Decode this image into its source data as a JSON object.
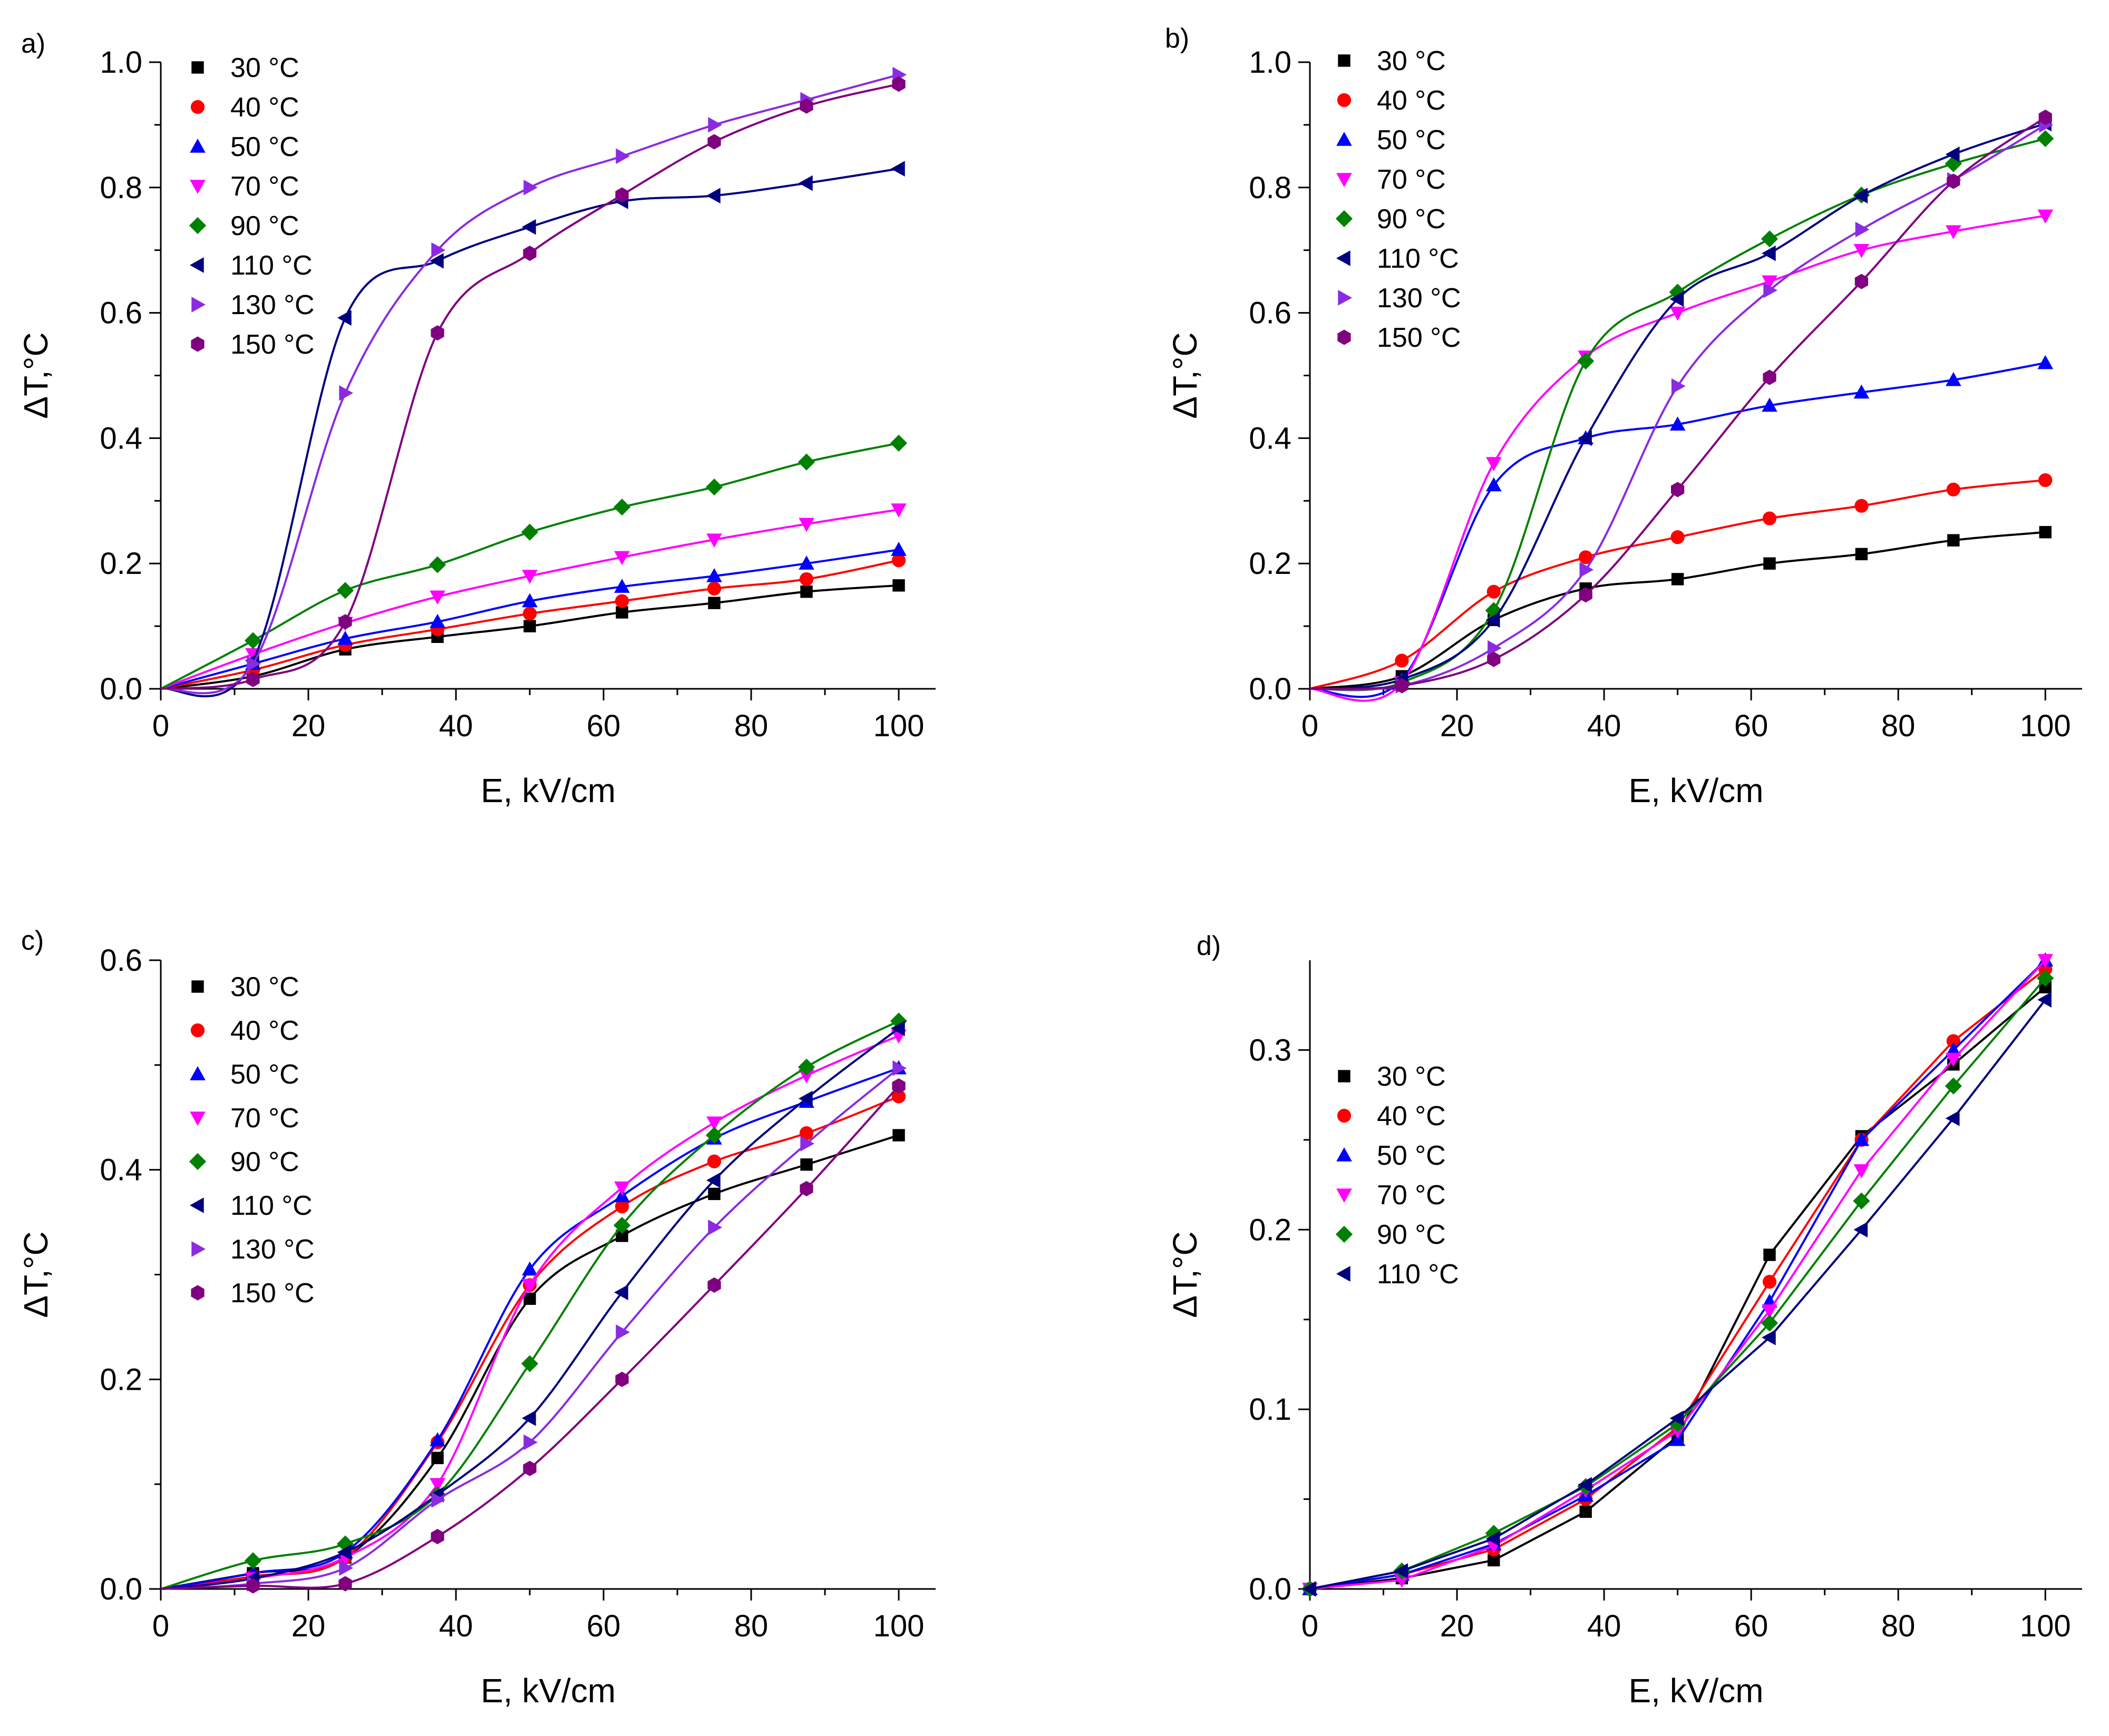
{
  "chart_data": [
    {
      "type": "line",
      "panel_label": "a)",
      "xlabel": "E, kV/cm",
      "ylabel": "ΔT,°C",
      "xlim": [
        0,
        105
      ],
      "ylim": [
        0,
        1.0
      ],
      "xticks": [
        0,
        20,
        40,
        60,
        80,
        100
      ],
      "xtick_labels": [
        "0",
        "20",
        "40",
        "60",
        "80",
        "100"
      ],
      "yticks": [
        0,
        0.2,
        0.4,
        0.6,
        0.8,
        1.0
      ],
      "ytick_labels": [
        "0.0",
        "0.2",
        "0.4",
        "0.6",
        "0.8",
        "1.0"
      ],
      "legend_position": "top-left",
      "x": [
        12.5,
        25,
        37.5,
        50,
        62.5,
        75,
        87.5,
        100
      ],
      "series": [
        {
          "name": "30 °C",
          "marker": "square",
          "color": "#000000",
          "values": [
            0.02,
            0.063,
            0.083,
            0.1,
            0.122,
            0.137,
            0.155,
            0.165
          ]
        },
        {
          "name": "40 °C",
          "marker": "circle",
          "color": "#ff0000",
          "values": [
            0.03,
            0.07,
            0.095,
            0.12,
            0.14,
            0.16,
            0.175,
            0.205
          ]
        },
        {
          "name": "50 °C",
          "marker": "triangle-up",
          "color": "#0000ff",
          "values": [
            0.04,
            0.08,
            0.107,
            0.14,
            0.163,
            0.18,
            0.2,
            0.222
          ]
        },
        {
          "name": "70 °C",
          "marker": "triangle-down",
          "color": "#ff00ff",
          "values": [
            0.055,
            0.105,
            0.147,
            0.18,
            0.21,
            0.238,
            0.263,
            0.286
          ]
        },
        {
          "name": "90 °C",
          "marker": "diamond",
          "color": "#008000",
          "values": [
            0.077,
            0.157,
            0.198,
            0.25,
            0.29,
            0.322,
            0.362,
            0.392
          ]
        },
        {
          "name": "110 °C",
          "marker": "triangle-left",
          "color": "#000080",
          "values": [
            0.045,
            0.592,
            0.683,
            0.737,
            0.778,
            0.787,
            0.807,
            0.83
          ]
        },
        {
          "name": "130 °C",
          "marker": "triangle-right",
          "color": "#8a2be2",
          "values": [
            0.04,
            0.472,
            0.7,
            0.8,
            0.85,
            0.9,
            0.94,
            0.98
          ]
        },
        {
          "name": "150 °C",
          "marker": "hexagon",
          "color": "#800080",
          "values": [
            0.015,
            0.107,
            0.568,
            0.695,
            0.788,
            0.873,
            0.93,
            0.965
          ]
        }
      ]
    },
    {
      "type": "line",
      "panel_label": "b)",
      "xlabel": "E, kV/cm",
      "ylabel": "ΔT,°C",
      "xlim": [
        0,
        105
      ],
      "ylim": [
        0,
        1.0
      ],
      "xticks": [
        0,
        20,
        40,
        60,
        80,
        100
      ],
      "xtick_labels": [
        "0",
        "20",
        "40",
        "60",
        "80",
        "100"
      ],
      "yticks": [
        0,
        0.2,
        0.4,
        0.6,
        0.8,
        1.0
      ],
      "ytick_labels": [
        "0.0",
        "0.2",
        "0.4",
        "0.6",
        "0.8",
        "1.0"
      ],
      "legend_position": "top-left",
      "x": [
        12.5,
        25,
        37.5,
        50,
        62.5,
        75,
        87.5,
        100
      ],
      "series": [
        {
          "name": "30 °C",
          "marker": "square",
          "color": "#000000",
          "values": [
            0.02,
            0.11,
            0.16,
            0.175,
            0.2,
            0.215,
            0.237,
            0.25
          ]
        },
        {
          "name": "40 °C",
          "marker": "circle",
          "color": "#ff0000",
          "values": [
            0.045,
            0.155,
            0.21,
            0.242,
            0.272,
            0.292,
            0.318,
            0.333
          ]
        },
        {
          "name": "50 °C",
          "marker": "triangle-up",
          "color": "#0000ff",
          "values": [
            0.015,
            0.325,
            0.4,
            0.422,
            0.452,
            0.473,
            0.493,
            0.52
          ]
        },
        {
          "name": "70 °C",
          "marker": "triangle-down",
          "color": "#ff00ff",
          "values": [
            0.01,
            0.36,
            0.53,
            0.6,
            0.65,
            0.7,
            0.73,
            0.755
          ]
        },
        {
          "name": "90 °C",
          "marker": "diamond",
          "color": "#008000",
          "values": [
            0.01,
            0.125,
            0.523,
            0.633,
            0.718,
            0.788,
            0.838,
            0.878
          ]
        },
        {
          "name": "110 °C",
          "marker": "triangle-left",
          "color": "#000080",
          "values": [
            0.015,
            0.11,
            0.4,
            0.622,
            0.695,
            0.787,
            0.853,
            0.902
          ]
        },
        {
          "name": "130 °C",
          "marker": "triangle-right",
          "color": "#8a2be2",
          "values": [
            0.005,
            0.065,
            0.19,
            0.483,
            0.636,
            0.733,
            0.812,
            0.9
          ]
        },
        {
          "name": "150 °C",
          "marker": "hexagon",
          "color": "#800080",
          "values": [
            0.005,
            0.047,
            0.15,
            0.318,
            0.497,
            0.65,
            0.81,
            0.912
          ]
        }
      ]
    },
    {
      "type": "line",
      "panel_label": "c)",
      "xlabel": "E, kV/cm",
      "ylabel": "ΔT,°C",
      "xlim": [
        0,
        105
      ],
      "ylim": [
        0,
        0.6
      ],
      "xticks": [
        0,
        20,
        40,
        60,
        80,
        100
      ],
      "xtick_labels": [
        "0",
        "20",
        "40",
        "60",
        "80",
        "100"
      ],
      "yticks": [
        0,
        0.2,
        0.4,
        0.6
      ],
      "ytick_labels": [
        "0.0",
        "0.2",
        "0.4",
        "0.6"
      ],
      "legend_position": "top-left",
      "x": [
        12.5,
        25,
        37.5,
        50,
        62.5,
        75,
        87.5,
        100
      ],
      "series": [
        {
          "name": "30 °C",
          "marker": "square",
          "color": "#000000",
          "values": [
            0.015,
            0.03,
            0.125,
            0.277,
            0.337,
            0.377,
            0.405,
            0.433
          ]
        },
        {
          "name": "40 °C",
          "marker": "circle",
          "color": "#ff0000",
          "values": [
            0.012,
            0.03,
            0.14,
            0.29,
            0.365,
            0.408,
            0.435,
            0.47
          ]
        },
        {
          "name": "50 °C",
          "marker": "triangle-up",
          "color": "#0000ff",
          "values": [
            0.015,
            0.035,
            0.142,
            0.305,
            0.375,
            0.43,
            0.465,
            0.497
          ]
        },
        {
          "name": "70 °C",
          "marker": "triangle-down",
          "color": "#ff00ff",
          "values": [
            0.01,
            0.03,
            0.1,
            0.29,
            0.383,
            0.445,
            0.49,
            0.528
          ]
        },
        {
          "name": "90 °C",
          "marker": "diamond",
          "color": "#008000",
          "values": [
            0.027,
            0.043,
            0.09,
            0.215,
            0.347,
            0.433,
            0.498,
            0.542
          ]
        },
        {
          "name": "110 °C",
          "marker": "triangle-left",
          "color": "#000080",
          "values": [
            0.01,
            0.035,
            0.09,
            0.163,
            0.283,
            0.39,
            0.468,
            0.535
          ]
        },
        {
          "name": "130 °C",
          "marker": "triangle-right",
          "color": "#8a2be2",
          "values": [
            0.005,
            0.02,
            0.085,
            0.14,
            0.245,
            0.345,
            0.425,
            0.497
          ]
        },
        {
          "name": "150 °C",
          "marker": "hexagon",
          "color": "#800080",
          "values": [
            0.003,
            0.005,
            0.05,
            0.115,
            0.2,
            0.29,
            0.382,
            0.48
          ]
        }
      ]
    },
    {
      "type": "line",
      "panel_label": "d)",
      "xlabel": "E, kV/cm",
      "ylabel": "ΔT,°C",
      "xlim": [
        0,
        105
      ],
      "ylim": [
        0,
        0.35
      ],
      "xticks": [
        0,
        20,
        40,
        60,
        80,
        100
      ],
      "xtick_labels": [
        "0",
        "20",
        "40",
        "60",
        "80",
        "100"
      ],
      "yticks": [
        0,
        0.1,
        0.2,
        0.3
      ],
      "ytick_labels": [
        "0.0",
        "0.1",
        "0.2",
        "0.3"
      ],
      "legend_position": "middle-left",
      "x": [
        0,
        12.5,
        25,
        37.5,
        50,
        62.5,
        75,
        87.5,
        100
      ],
      "series": [
        {
          "name": "30 °C",
          "marker": "square",
          "color": "#000000",
          "values": [
            0,
            0.006,
            0.016,
            0.043,
            0.085,
            0.186,
            0.252,
            0.292,
            0.335
          ]
        },
        {
          "name": "40 °C",
          "marker": "circle",
          "color": "#ff0000",
          "values": [
            0,
            0.008,
            0.022,
            0.05,
            0.09,
            0.171,
            0.25,
            0.305,
            0.345
          ]
        },
        {
          "name": "50 °C",
          "marker": "triangle-up",
          "color": "#0000ff",
          "values": [
            0,
            0.008,
            0.025,
            0.052,
            0.083,
            0.16,
            0.25,
            0.3,
            0.35
          ]
        },
        {
          "name": "70 °C",
          "marker": "triangle-down",
          "color": "#ff00ff",
          "values": [
            0,
            0.005,
            0.024,
            0.055,
            0.088,
            0.155,
            0.233,
            0.295,
            0.35
          ]
        },
        {
          "name": "90 °C",
          "marker": "diamond",
          "color": "#008000",
          "values": [
            0,
            0.01,
            0.031,
            0.057,
            0.092,
            0.148,
            0.216,
            0.28,
            0.34
          ]
        },
        {
          "name": "110 °C",
          "marker": "triangle-left",
          "color": "#000080",
          "values": [
            0,
            0.01,
            0.028,
            0.058,
            0.095,
            0.14,
            0.2,
            0.262,
            0.328
          ]
        }
      ]
    }
  ]
}
